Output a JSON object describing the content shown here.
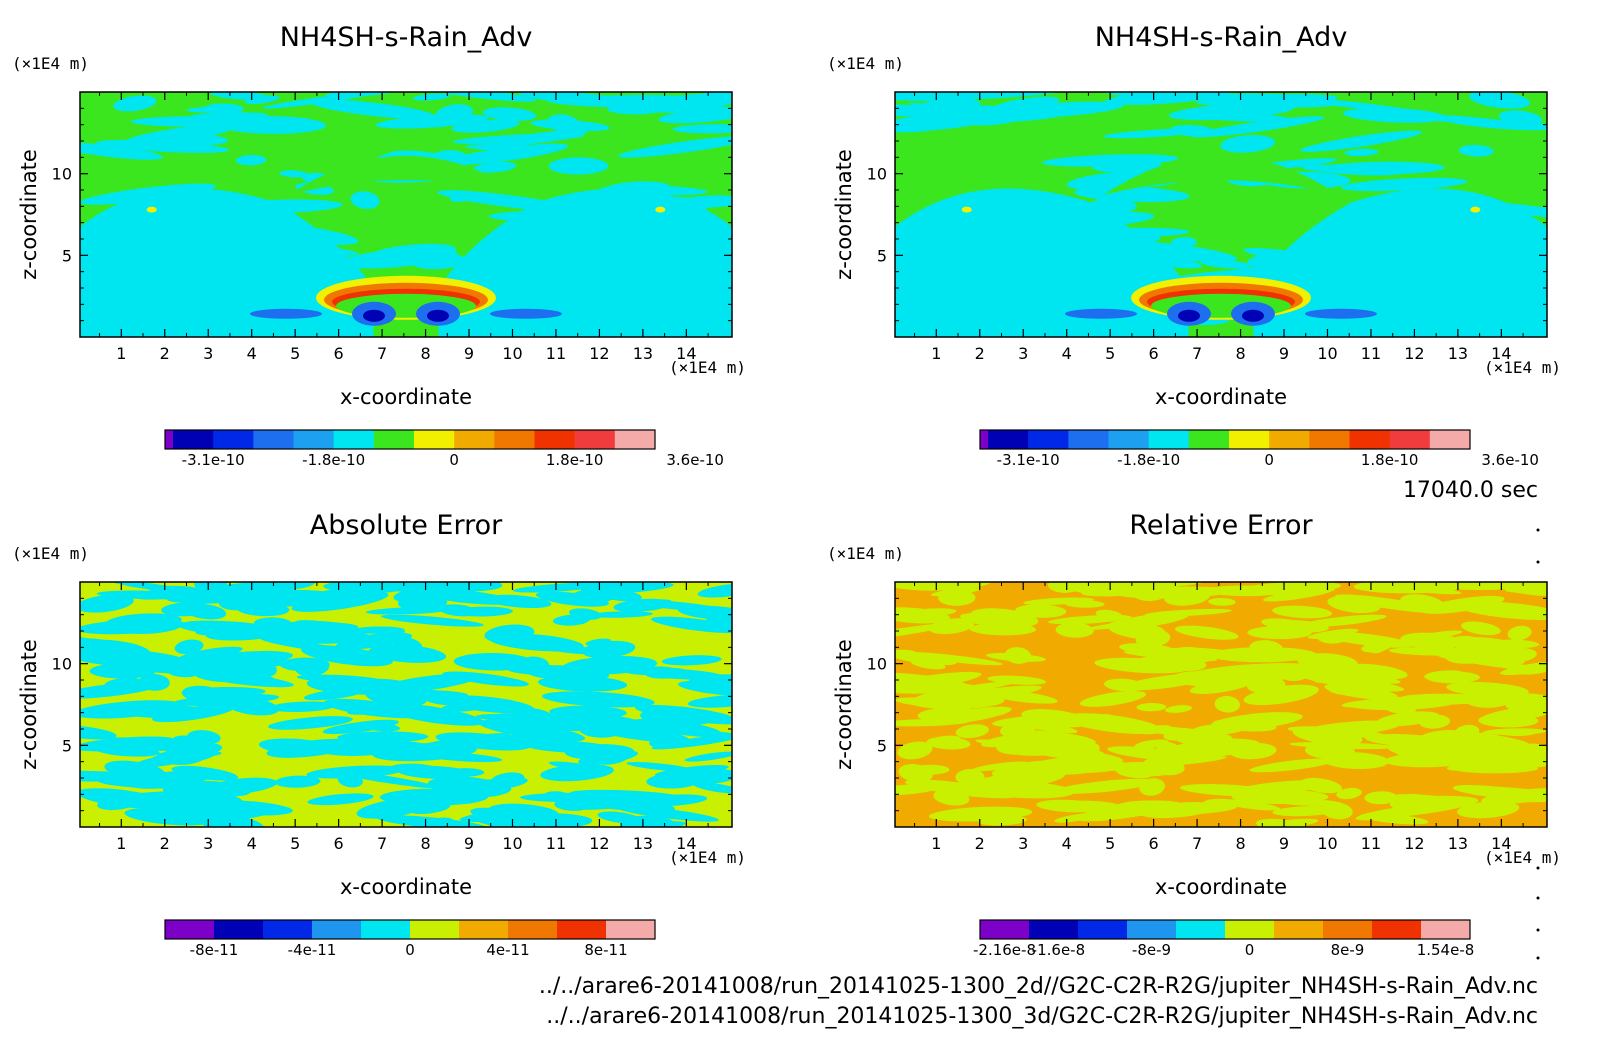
{
  "chart_data": [
    {
      "type": "heatmap",
      "title": "NH4SH-s-Rain_Adv",
      "xlabel": "x-coordinate",
      "ylabel": "z-coordinate",
      "x_unit": "(×1E4 m)",
      "y_unit": "(×1E4 m)",
      "x_ticks": [
        1,
        2,
        3,
        4,
        5,
        6,
        7,
        8,
        9,
        10,
        11,
        12,
        13,
        14
      ],
      "y_ticks": [
        5,
        10
      ],
      "xlim": [
        0.05,
        15.05
      ],
      "ylim": [
        0,
        15
      ],
      "colorbar_labels": [
        {
          "text": "-3.1e-10",
          "pos": 1
        },
        {
          "text": "-1.8e-10",
          "pos": 4
        },
        {
          "text": "0",
          "pos": 7
        },
        {
          "text": "1.8e-10",
          "pos": 10
        },
        {
          "text": "3.6e-10",
          "pos": 13
        }
      ],
      "colorbar_colors": [
        "#7d00c8",
        "#0000b4",
        "#0028e6",
        "#1e6ef0",
        "#1ea0f0",
        "#00e6f0",
        "#3ce61e",
        "#f0f000",
        "#f0aa00",
        "#f07800",
        "#f03200",
        "#f03c3c",
        "#f5aaaa"
      ],
      "background_color": "#3ce61e",
      "feature_color": "#00e6f0"
    },
    {
      "type": "heatmap",
      "title": "NH4SH-s-Rain_Adv",
      "xlabel": "x-coordinate",
      "ylabel": "z-coordinate",
      "x_unit": "(×1E4 m)",
      "y_unit": "(×1E4 m)",
      "x_ticks": [
        1,
        2,
        3,
        4,
        5,
        6,
        7,
        8,
        9,
        10,
        11,
        12,
        13,
        14
      ],
      "y_ticks": [
        5,
        10
      ],
      "xlim": [
        0.05,
        15.05
      ],
      "ylim": [
        0,
        15
      ],
      "colorbar_labels": [
        {
          "text": "-3.1e-10",
          "pos": 1
        },
        {
          "text": "-1.8e-10",
          "pos": 4
        },
        {
          "text": "0",
          "pos": 7
        },
        {
          "text": "1.8e-10",
          "pos": 10
        },
        {
          "text": "3.6e-10",
          "pos": 13
        }
      ],
      "colorbar_colors": [
        "#7d00c8",
        "#0000b4",
        "#0028e6",
        "#1e6ef0",
        "#1ea0f0",
        "#00e6f0",
        "#3ce61e",
        "#f0f000",
        "#f0aa00",
        "#f07800",
        "#f03200",
        "#f03c3c",
        "#f5aaaa"
      ],
      "background_color": "#3ce61e",
      "feature_color": "#00e6f0"
    },
    {
      "type": "heatmap",
      "title": "Absolute Error",
      "xlabel": "x-coordinate",
      "ylabel": "z-coordinate",
      "x_unit": "(×1E4 m)",
      "y_unit": "(×1E4 m)",
      "x_ticks": [
        1,
        2,
        3,
        4,
        5,
        6,
        7,
        8,
        9,
        10,
        11,
        12,
        13,
        14
      ],
      "y_ticks": [
        5,
        10
      ],
      "xlim": [
        0.05,
        15.05
      ],
      "ylim": [
        0,
        15
      ],
      "colorbar_labels": [
        {
          "text": "-8e-11",
          "pos": 1
        },
        {
          "text": "-4e-11",
          "pos": 3
        },
        {
          "text": "0",
          "pos": 5
        },
        {
          "text": "4e-11",
          "pos": 7
        },
        {
          "text": "8e-11",
          "pos": 9
        }
      ],
      "colorbar_colors": [
        "#7d00c8",
        "#0000b4",
        "#0028e6",
        "#1e96f0",
        "#00e6f0",
        "#c8f000",
        "#f0aa00",
        "#f07800",
        "#f03200",
        "#f5aaaa"
      ],
      "background_color": "#c8f000",
      "feature_color": "#00e6f0"
    },
    {
      "type": "heatmap",
      "title": "Relative Error",
      "xlabel": "x-coordinate",
      "ylabel": "z-coordinate",
      "x_unit": "(×1E4 m)",
      "y_unit": "(×1E4 m)",
      "x_ticks": [
        1,
        2,
        3,
        4,
        5,
        6,
        7,
        8,
        9,
        10,
        11,
        12,
        13,
        14
      ],
      "y_ticks": [
        5,
        10
      ],
      "xlim": [
        0.05,
        15.05
      ],
      "ylim": [
        0,
        15
      ],
      "colorbar_labels": [
        {
          "text": "-2.16e-8",
          "pos": 0.5
        },
        {
          "text": "-1.6e-8",
          "pos": 1.6
        },
        {
          "text": "-8e-9",
          "pos": 3.5
        },
        {
          "text": "0",
          "pos": 5.5
        },
        {
          "text": "8e-9",
          "pos": 7.5
        },
        {
          "text": "1.54e-8",
          "pos": 9.5
        }
      ],
      "colorbar_colors": [
        "#7d00c8",
        "#0000b4",
        "#0028e6",
        "#1e96f0",
        "#00e6f0",
        "#c8f000",
        "#f0aa00",
        "#f07800",
        "#f03200",
        "#f5aaaa"
      ],
      "background_color": "#f0aa00",
      "feature_color": "#c8f000"
    }
  ],
  "time_label": "17040.0 sec",
  "file_paths": [
    "../../arare6-20141008/run_20141025-1300_2d//G2C-C2R-R2G/jupiter_NH4SH-s-Rain_Adv.nc",
    "../../arare6-20141008/run_20141025-1300_3d/G2C-C2R-R2G/jupiter_NH4SH-s-Rain_Adv.nc"
  ]
}
